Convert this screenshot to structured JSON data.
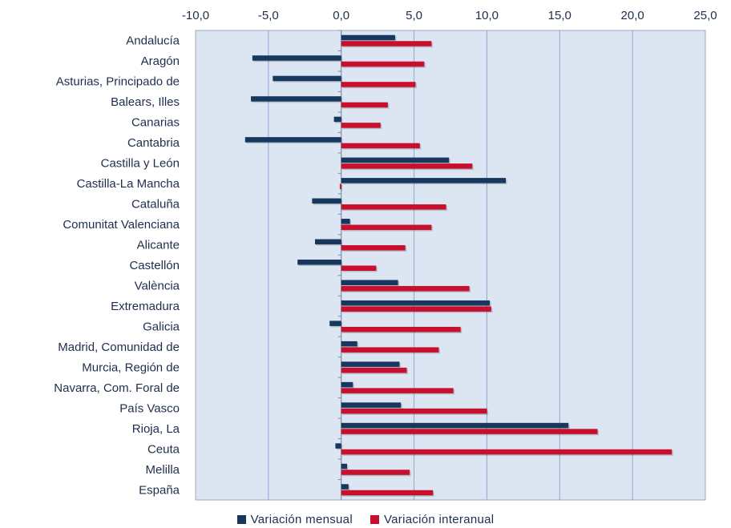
{
  "chart_data": {
    "type": "bar",
    "orientation": "horizontal",
    "categories": [
      "Andalucía",
      "Aragón",
      "Asturias, Principado de",
      "Balears, Illes",
      "Canarias",
      "Cantabria",
      "Castilla y León",
      "Castilla-La Mancha",
      "Cataluña",
      "Comunitat Valenciana",
      "Alicante",
      "Castellón",
      "València",
      "Extremadura",
      "Galicia",
      "Madrid, Comunidad de",
      "Murcia, Región de",
      "Navarra, Com. Foral de",
      "País Vasco",
      "Rioja, La",
      "Ceuta",
      "Melilla",
      "España"
    ],
    "series": [
      {
        "name": "Variación mensual",
        "color": "#17375e",
        "values": [
          3.7,
          -6.1,
          -4.7,
          -6.2,
          -0.5,
          -6.6,
          7.4,
          11.3,
          -2.0,
          0.6,
          -1.8,
          -3.0,
          3.9,
          10.2,
          -0.8,
          1.1,
          4.0,
          0.8,
          4.1,
          15.6,
          -0.4,
          0.4,
          0.5
        ]
      },
      {
        "name": "Variación interanual",
        "color": "#c8102e",
        "values": [
          6.2,
          5.7,
          5.1,
          3.2,
          2.7,
          5.4,
          9.0,
          -0.1,
          7.2,
          6.2,
          4.4,
          2.4,
          8.8,
          10.3,
          8.2,
          6.7,
          4.5,
          7.7,
          10.0,
          17.6,
          22.7,
          4.7,
          6.3
        ]
      }
    ],
    "xlim": [
      -10,
      25
    ],
    "x_ticks": [
      "-10,0",
      "-5,0",
      "0,0",
      "5,0",
      "10,0",
      "15,0",
      "20,0",
      "25,0"
    ],
    "x_axis_position": "top",
    "grid": true,
    "plot_background": "#dce6f2",
    "legend_position": "bottom"
  }
}
